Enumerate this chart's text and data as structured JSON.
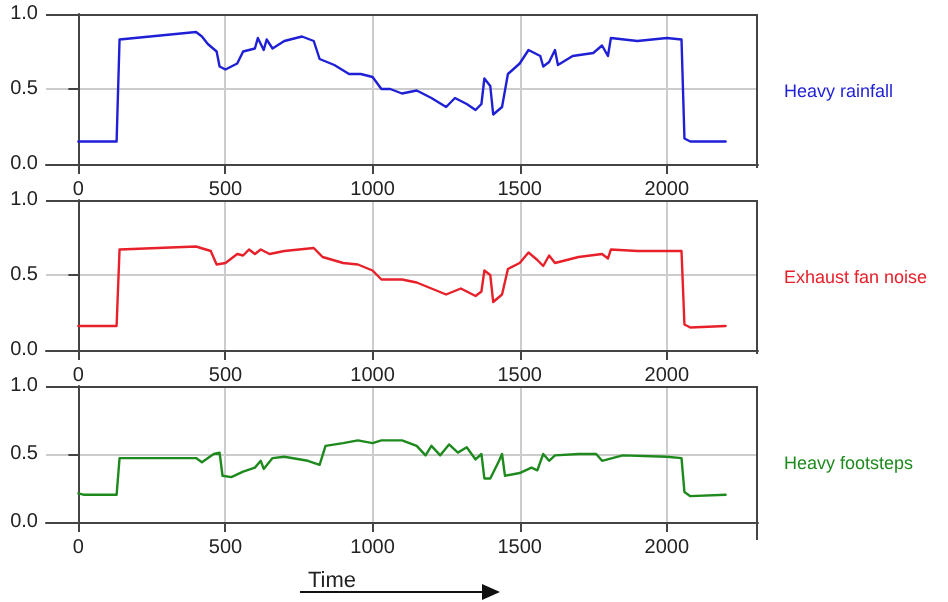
{
  "chart_data": [
    {
      "type": "line",
      "x": [
        0,
        130,
        140,
        400,
        420,
        440,
        470,
        480,
        500,
        540,
        560,
        600,
        610,
        630,
        640,
        660,
        700,
        760,
        800,
        820,
        870,
        920,
        960,
        1000,
        1030,
        1060,
        1100,
        1150,
        1200,
        1250,
        1280,
        1320,
        1350,
        1370,
        1380,
        1400,
        1410,
        1440,
        1460,
        1500,
        1530,
        1570,
        1580,
        1600,
        1620,
        1630,
        1680,
        1750,
        1780,
        1800,
        1810,
        1900,
        2000,
        2050,
        2060,
        2080,
        2200
      ],
      "series": [
        {
          "name": "Heavy rainfall",
          "color": "#1f1fd6",
          "values": [
            0.15,
            0.15,
            0.83,
            0.88,
            0.85,
            0.8,
            0.75,
            0.65,
            0.63,
            0.67,
            0.75,
            0.77,
            0.84,
            0.76,
            0.83,
            0.77,
            0.82,
            0.85,
            0.82,
            0.7,
            0.66,
            0.6,
            0.6,
            0.58,
            0.5,
            0.5,
            0.47,
            0.49,
            0.44,
            0.38,
            0.44,
            0.4,
            0.36,
            0.4,
            0.57,
            0.52,
            0.33,
            0.38,
            0.6,
            0.67,
            0.76,
            0.72,
            0.65,
            0.68,
            0.76,
            0.66,
            0.72,
            0.74,
            0.79,
            0.72,
            0.84,
            0.82,
            0.84,
            0.83,
            0.17,
            0.15,
            0.15
          ]
        }
      ],
      "xlim": [
        -110,
        2310
      ],
      "xticks": [
        0,
        500,
        1000,
        1500,
        2000
      ],
      "ylim": [
        0,
        1
      ],
      "yticks": [
        {
          "value": 0,
          "label": "0.0"
        },
        {
          "value": 0.5,
          "label": "0.5"
        },
        {
          "value": 1,
          "label": "1.0"
        }
      ],
      "grid": true,
      "legend": false
    },
    {
      "type": "line",
      "x": [
        0,
        130,
        140,
        400,
        450,
        470,
        500,
        540,
        560,
        580,
        600,
        620,
        650,
        700,
        800,
        830,
        900,
        950,
        1000,
        1030,
        1100,
        1150,
        1200,
        1250,
        1300,
        1350,
        1370,
        1380,
        1400,
        1410,
        1440,
        1460,
        1500,
        1530,
        1560,
        1580,
        1600,
        1620,
        1700,
        1780,
        1800,
        1810,
        1900,
        2050,
        2060,
        2080,
        2200
      ],
      "series": [
        {
          "name": "Exhaust fan noise",
          "color": "#e8202a",
          "values": [
            0.16,
            0.16,
            0.67,
            0.69,
            0.66,
            0.57,
            0.58,
            0.64,
            0.63,
            0.67,
            0.64,
            0.67,
            0.64,
            0.66,
            0.68,
            0.62,
            0.58,
            0.57,
            0.53,
            0.47,
            0.47,
            0.45,
            0.41,
            0.37,
            0.41,
            0.36,
            0.39,
            0.53,
            0.5,
            0.32,
            0.37,
            0.54,
            0.58,
            0.65,
            0.6,
            0.56,
            0.63,
            0.58,
            0.62,
            0.64,
            0.61,
            0.67,
            0.66,
            0.66,
            0.17,
            0.15,
            0.16
          ]
        }
      ],
      "xlim": [
        -110,
        2310
      ],
      "xticks": [
        0,
        500,
        1000,
        1500,
        2000
      ],
      "ylim": [
        0,
        1
      ],
      "yticks": [
        {
          "value": 0,
          "label": "0.0"
        },
        {
          "value": 0.5,
          "label": "0.5"
        },
        {
          "value": 1,
          "label": "1.0"
        }
      ],
      "grid": true,
      "legend": false
    },
    {
      "type": "line",
      "x": [
        0,
        20,
        130,
        140,
        400,
        420,
        460,
        480,
        490,
        520,
        560,
        600,
        620,
        630,
        660,
        700,
        780,
        820,
        840,
        900,
        950,
        1000,
        1030,
        1100,
        1150,
        1180,
        1200,
        1230,
        1260,
        1290,
        1320,
        1350,
        1370,
        1380,
        1400,
        1430,
        1440,
        1450,
        1500,
        1540,
        1560,
        1580,
        1600,
        1620,
        1700,
        1760,
        1780,
        1850,
        2000,
        2050,
        2060,
        2080,
        2200
      ],
      "series": [
        {
          "name": "Heavy footsteps",
          "color": "#1e8a1e",
          "values": [
            0.21,
            0.2,
            0.2,
            0.47,
            0.47,
            0.44,
            0.5,
            0.51,
            0.34,
            0.33,
            0.37,
            0.4,
            0.45,
            0.39,
            0.47,
            0.48,
            0.45,
            0.42,
            0.56,
            0.58,
            0.6,
            0.58,
            0.6,
            0.6,
            0.56,
            0.49,
            0.56,
            0.49,
            0.57,
            0.51,
            0.55,
            0.46,
            0.5,
            0.32,
            0.32,
            0.45,
            0.5,
            0.34,
            0.36,
            0.4,
            0.38,
            0.5,
            0.45,
            0.49,
            0.5,
            0.5,
            0.45,
            0.49,
            0.48,
            0.47,
            0.22,
            0.19,
            0.2
          ]
        }
      ],
      "xlabel": "Time",
      "xlim": [
        -110,
        2310
      ],
      "xticks": [
        0,
        500,
        1000,
        1500,
        2000
      ],
      "ylim": [
        0,
        1
      ],
      "yticks": [
        {
          "value": 0,
          "label": "0.0"
        },
        {
          "value": 0.5,
          "label": "0.5"
        },
        {
          "value": 1,
          "label": "1.0"
        }
      ],
      "grid": true,
      "legend": false
    }
  ]
}
